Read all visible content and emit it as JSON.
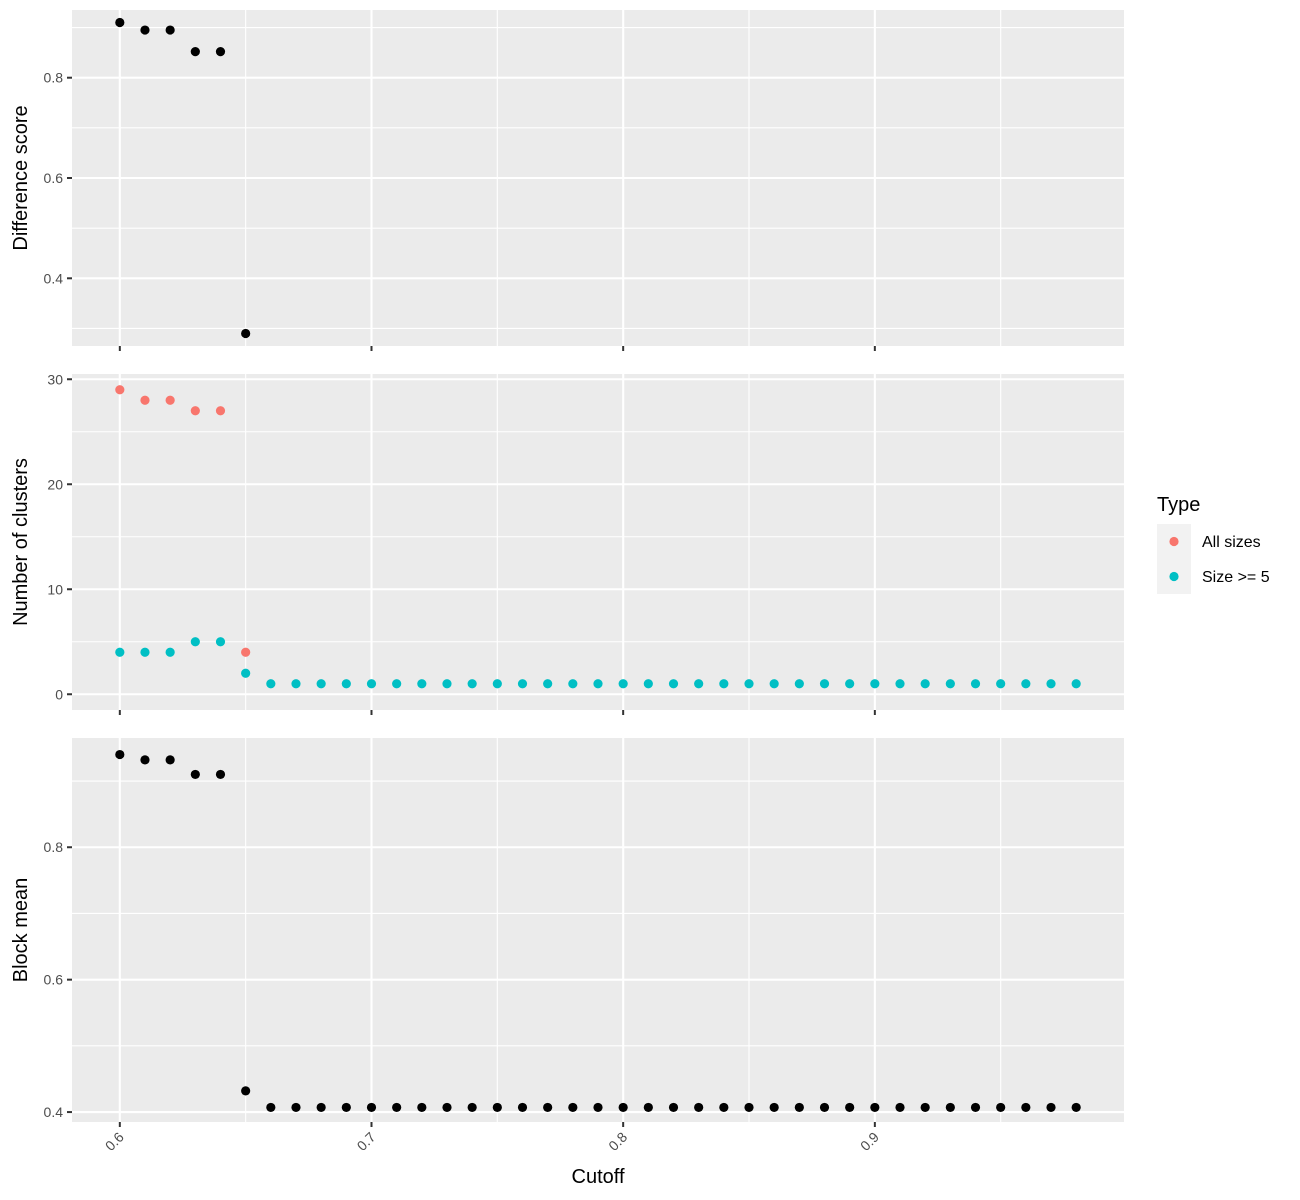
{
  "chart_data": {
    "type": "scatter",
    "x": [
      0.6,
      0.61,
      0.62,
      0.63,
      0.64,
      0.65,
      0.66,
      0.67,
      0.68,
      0.69,
      0.7,
      0.71,
      0.72,
      0.73,
      0.74,
      0.75,
      0.76,
      0.77,
      0.78,
      0.79,
      0.8,
      0.81,
      0.82,
      0.83,
      0.84,
      0.85,
      0.86,
      0.87,
      0.88,
      0.89,
      0.9,
      0.91,
      0.92,
      0.93,
      0.94,
      0.95,
      0.96,
      0.97,
      0.98
    ],
    "xlabel": "Cutoff",
    "xlim": [
      0.581,
      0.999
    ],
    "x_ticks": [
      0.6,
      0.7,
      0.8,
      0.9
    ],
    "x_tick_labels": [
      "0.6",
      "0.7",
      "0.8",
      "0.9"
    ],
    "x_tick_rotation": "45",
    "grid": true,
    "legend": {
      "title": "Type",
      "position": "right",
      "entries": [
        {
          "name": "All sizes",
          "color": "#F8766D"
        },
        {
          "name": "Size >= 5",
          "color": "#00BFC4"
        }
      ]
    },
    "panels": [
      {
        "ylabel": "Difference score",
        "ylim": [
          0.265,
          0.935
        ],
        "y_ticks": [
          0.4,
          0.6,
          0.8
        ],
        "y_tick_labels": [
          "0.4",
          "0.6",
          "0.8"
        ],
        "series": [
          {
            "color": "#000000",
            "x": [
              0.6,
              0.61,
              0.62,
              0.63,
              0.64,
              0.65
            ],
            "values": [
              0.91,
              0.895,
              0.895,
              0.852,
              0.852,
              0.29
            ]
          }
        ]
      },
      {
        "ylabel": "Number of clusters",
        "ylim": [
          -1.5,
          30.5
        ],
        "y_ticks": [
          0,
          10,
          20,
          30
        ],
        "y_tick_labels": [
          "0",
          "10",
          "20",
          "30"
        ],
        "series": [
          {
            "name": "All sizes",
            "color": "#F8766D",
            "x": [
              0.6,
              0.61,
              0.62,
              0.63,
              0.64,
              0.65
            ],
            "values": [
              29,
              28,
              28,
              27,
              27,
              4
            ]
          },
          {
            "name": "Size >= 5",
            "color": "#00BFC4",
            "x": [
              0.6,
              0.61,
              0.62,
              0.63,
              0.64,
              0.65,
              0.66,
              0.67,
              0.68,
              0.69,
              0.7,
              0.71,
              0.72,
              0.73,
              0.74,
              0.75,
              0.76,
              0.77,
              0.78,
              0.79,
              0.8,
              0.81,
              0.82,
              0.83,
              0.84,
              0.85,
              0.86,
              0.87,
              0.88,
              0.89,
              0.9,
              0.91,
              0.92,
              0.93,
              0.94,
              0.95,
              0.96,
              0.97,
              0.98
            ],
            "values": [
              4,
              4,
              4,
              5,
              5,
              2,
              1,
              1,
              1,
              1,
              1,
              1,
              1,
              1,
              1,
              1,
              1,
              1,
              1,
              1,
              1,
              1,
              1,
              1,
              1,
              1,
              1,
              1,
              1,
              1,
              1,
              1,
              1,
              1,
              1,
              1,
              1,
              1,
              1
            ]
          }
        ]
      },
      {
        "ylabel": "Block mean",
        "ylim": [
          0.385,
          0.965
        ],
        "y_ticks": [
          0.4,
          0.6,
          0.8
        ],
        "y_tick_labels": [
          "0.4",
          "0.6",
          "0.8"
        ],
        "series": [
          {
            "color": "#000000",
            "x": [
              0.6,
              0.61,
              0.62,
              0.63,
              0.64,
              0.65,
              0.66,
              0.67,
              0.68,
              0.69,
              0.7,
              0.71,
              0.72,
              0.73,
              0.74,
              0.75,
              0.76,
              0.77,
              0.78,
              0.79,
              0.8,
              0.81,
              0.82,
              0.83,
              0.84,
              0.85,
              0.86,
              0.87,
              0.88,
              0.89,
              0.9,
              0.91,
              0.92,
              0.93,
              0.94,
              0.95,
              0.96,
              0.97,
              0.98
            ],
            "values": [
              0.94,
              0.932,
              0.932,
              0.91,
              0.91,
              0.432,
              0.407,
              0.407,
              0.407,
              0.407,
              0.407,
              0.407,
              0.407,
              0.407,
              0.407,
              0.407,
              0.407,
              0.407,
              0.407,
              0.407,
              0.407,
              0.407,
              0.407,
              0.407,
              0.407,
              0.407,
              0.407,
              0.407,
              0.407,
              0.407,
              0.407,
              0.407,
              0.407,
              0.407,
              0.407,
              0.407,
              0.407,
              0.407,
              0.407
            ]
          }
        ]
      }
    ]
  }
}
